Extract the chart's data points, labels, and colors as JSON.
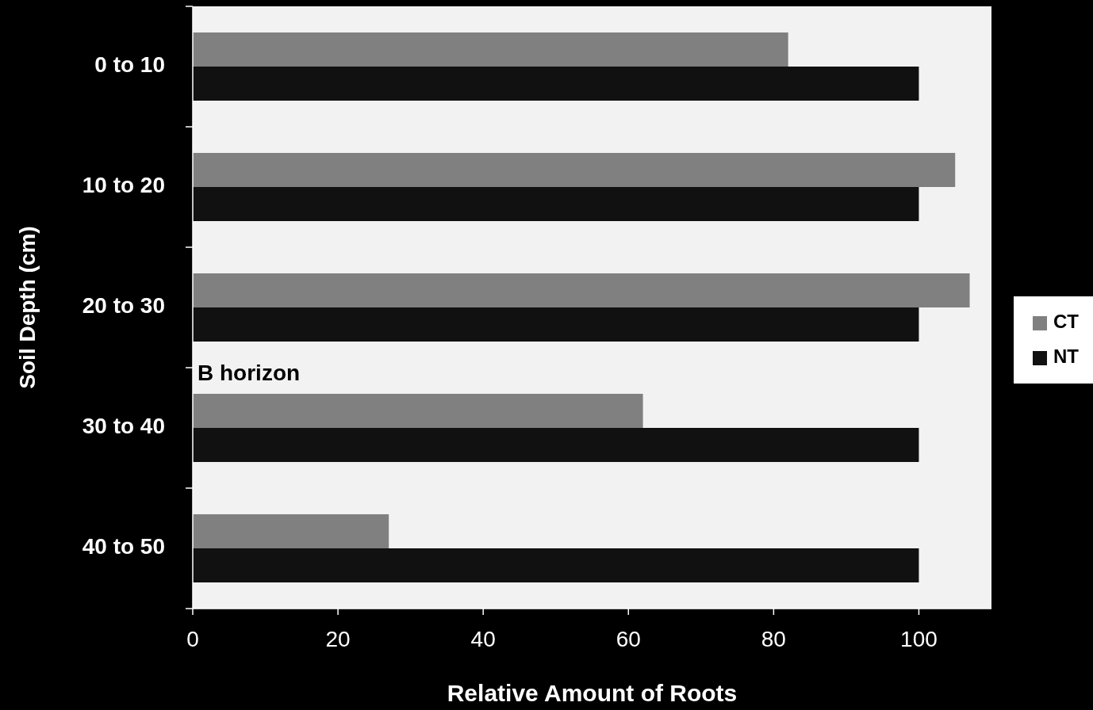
{
  "chart_data": {
    "type": "bar",
    "orientation": "horizontal",
    "xlabel": "Relative Amount of Roots",
    "ylabel": "Soil Depth (cm)",
    "categories": [
      "0 to 10",
      "10 to 20",
      "20 to 30",
      "30 to 40",
      "40 to 50"
    ],
    "series": [
      {
        "name": "CT",
        "color": "#808080",
        "values": [
          82,
          105,
          107,
          62,
          27
        ]
      },
      {
        "name": "NT",
        "color": "#111111",
        "values": [
          100,
          100,
          100,
          100,
          100
        ]
      }
    ],
    "xlim": [
      0,
      110
    ],
    "xticks": [
      0,
      20,
      40,
      60,
      80,
      100
    ],
    "grid": false,
    "legend": "right",
    "annotations": [
      {
        "text": "B horizon",
        "x": 0,
        "y": "30 to 40"
      }
    ]
  }
}
